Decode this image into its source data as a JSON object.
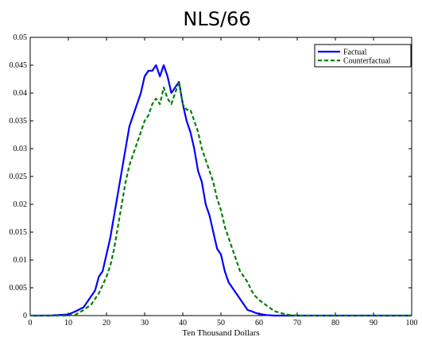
{
  "chart_data": {
    "type": "line",
    "title": "NLS/66",
    "xlabel": "Ten Thousand Dollars",
    "ylabel": "",
    "xlim": [
      0,
      100
    ],
    "ylim": [
      0,
      0.05
    ],
    "xticks": [
      "0",
      "10",
      "20",
      "30",
      "40",
      "50",
      "60",
      "70",
      "80",
      "90",
      "100"
    ],
    "yticks": [
      "0",
      "0.005",
      "0.01",
      "0.015",
      "0.02",
      "0.025",
      "0.03",
      "0.035",
      "0.04",
      "0.045",
      "0.05"
    ],
    "grid": false,
    "legend_position": "top-right",
    "series": [
      {
        "name": "Factual",
        "color": "#0000ff",
        "style": "solid",
        "x": [
          0,
          5,
          10,
          12,
          14,
          16,
          17,
          18,
          19,
          20,
          21,
          22,
          23,
          24,
          25,
          26,
          27,
          28,
          29,
          30,
          31,
          32,
          33,
          34,
          35,
          36,
          37,
          38,
          39,
          40,
          41,
          42,
          43,
          44,
          45,
          46,
          47,
          48,
          49,
          50,
          51,
          52,
          53,
          54,
          55,
          56,
          57,
          58,
          59,
          60,
          62,
          64,
          66,
          70,
          80,
          90,
          100
        ],
        "y": [
          0,
          0,
          0.0002,
          0.0008,
          0.0015,
          0.0035,
          0.0045,
          0.007,
          0.008,
          0.011,
          0.014,
          0.018,
          0.022,
          0.026,
          0.03,
          0.034,
          0.036,
          0.038,
          0.04,
          0.043,
          0.044,
          0.044,
          0.045,
          0.043,
          0.045,
          0.043,
          0.04,
          0.041,
          0.042,
          0.038,
          0.035,
          0.033,
          0.03,
          0.026,
          0.024,
          0.02,
          0.018,
          0.015,
          0.012,
          0.011,
          0.008,
          0.006,
          0.005,
          0.004,
          0.003,
          0.002,
          0.001,
          0.0008,
          0.0005,
          0.0003,
          0.0001,
          0,
          0,
          0,
          0,
          0,
          0
        ]
      },
      {
        "name": "Counterfactual",
        "color": "#008000",
        "style": "dashed",
        "x": [
          0,
          5,
          10,
          12,
          14,
          16,
          18,
          20,
          21,
          22,
          23,
          24,
          25,
          26,
          27,
          28,
          29,
          30,
          31,
          32,
          33,
          34,
          35,
          36,
          37,
          38,
          39,
          40,
          41,
          42,
          43,
          44,
          45,
          46,
          47,
          48,
          49,
          50,
          51,
          52,
          53,
          54,
          55,
          56,
          57,
          58,
          59,
          60,
          62,
          64,
          66,
          68,
          70,
          75,
          80,
          90,
          100
        ],
        "y": [
          0,
          0,
          0,
          0.0002,
          0.001,
          0.002,
          0.004,
          0.007,
          0.009,
          0.012,
          0.016,
          0.02,
          0.024,
          0.027,
          0.029,
          0.031,
          0.033,
          0.035,
          0.036,
          0.038,
          0.039,
          0.038,
          0.041,
          0.039,
          0.038,
          0.04,
          0.042,
          0.038,
          0.037,
          0.037,
          0.035,
          0.033,
          0.03,
          0.028,
          0.026,
          0.024,
          0.021,
          0.019,
          0.016,
          0.014,
          0.012,
          0.01,
          0.008,
          0.007,
          0.006,
          0.0045,
          0.0035,
          0.0028,
          0.0018,
          0.0008,
          0.0004,
          0.0001,
          0,
          0,
          0,
          0,
          0
        ]
      }
    ]
  }
}
